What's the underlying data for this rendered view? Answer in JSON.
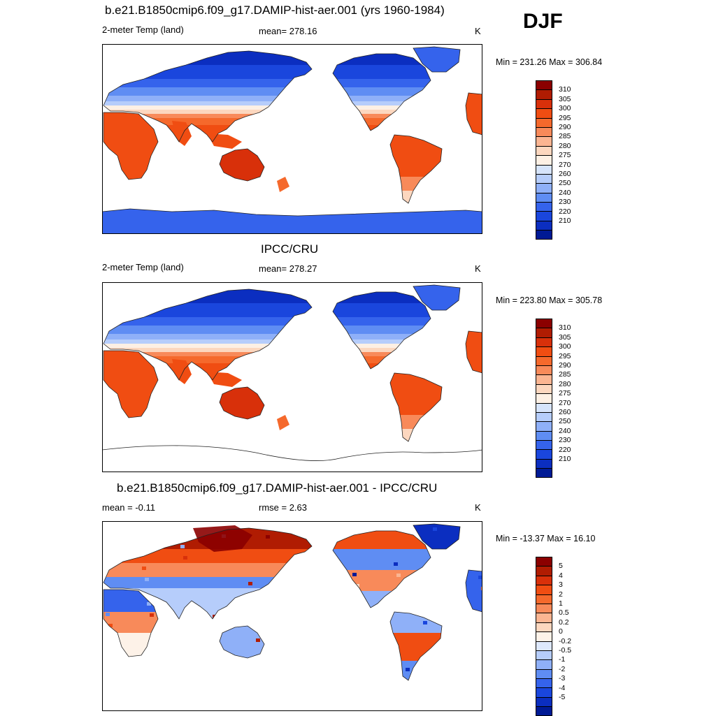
{
  "season": "DJF",
  "panels": [
    {
      "title": "b.e21.B1850cmip6.f09_g17.DAMIP-hist-aer.001 (yrs 1960-1984)",
      "left_label": "2-meter Temp (land)",
      "center_label": "mean= 278.16",
      "units": "K",
      "minmax": "Min = 231.26 Max = 306.84",
      "has_antarctica": true
    },
    {
      "title": "IPCC/CRU",
      "left_label": "2-meter Temp (land)",
      "center_label": "mean= 278.27",
      "units": "K",
      "minmax": "Min = 223.80 Max = 305.78",
      "has_antarctica": false
    },
    {
      "title": "b.e21.B1850cmip6.f09_g17.DAMIP-hist-aer.001 - IPCC/CRU",
      "left_label": "mean =  -0.11",
      "center_label": "rmse =   2.63",
      "units": "K",
      "minmax": "Min = -13.37 Max =  16.10",
      "has_antarctica": false
    }
  ],
  "colorbar_temp": {
    "labels": [
      "310",
      "305",
      "300",
      "295",
      "290",
      "285",
      "280",
      "275",
      "270",
      "260",
      "250",
      "240",
      "230",
      "220",
      "210"
    ],
    "colors": [
      "#8b0000",
      "#b01c02",
      "#d8300a",
      "#f04d12",
      "#f5692c",
      "#f88a5a",
      "#fbb592",
      "#fcd7bf",
      "#fdf0e4",
      "#d6e4fb",
      "#b6cdfb",
      "#8fb0f8",
      "#5f8df3",
      "#3563ec",
      "#1a46dd",
      "#0b2ec0",
      "#001a95"
    ]
  },
  "colorbar_diff": {
    "labels": [
      "5",
      "4",
      "3",
      "2",
      "1",
      "0.5",
      "0.2",
      "0",
      "-0.2",
      "-0.5",
      "-1",
      "-2",
      "-3",
      "-4",
      "-5"
    ],
    "colors": [
      "#8b0000",
      "#b01c02",
      "#d8300a",
      "#f04d12",
      "#f5692c",
      "#f88a5a",
      "#fbb592",
      "#fcd7bf",
      "#fdf2e8",
      "#dde8fc",
      "#b6cdfb",
      "#8fb0f8",
      "#5f8df3",
      "#3563ec",
      "#1a46dd",
      "#0b2ec0",
      "#001a95"
    ]
  }
}
